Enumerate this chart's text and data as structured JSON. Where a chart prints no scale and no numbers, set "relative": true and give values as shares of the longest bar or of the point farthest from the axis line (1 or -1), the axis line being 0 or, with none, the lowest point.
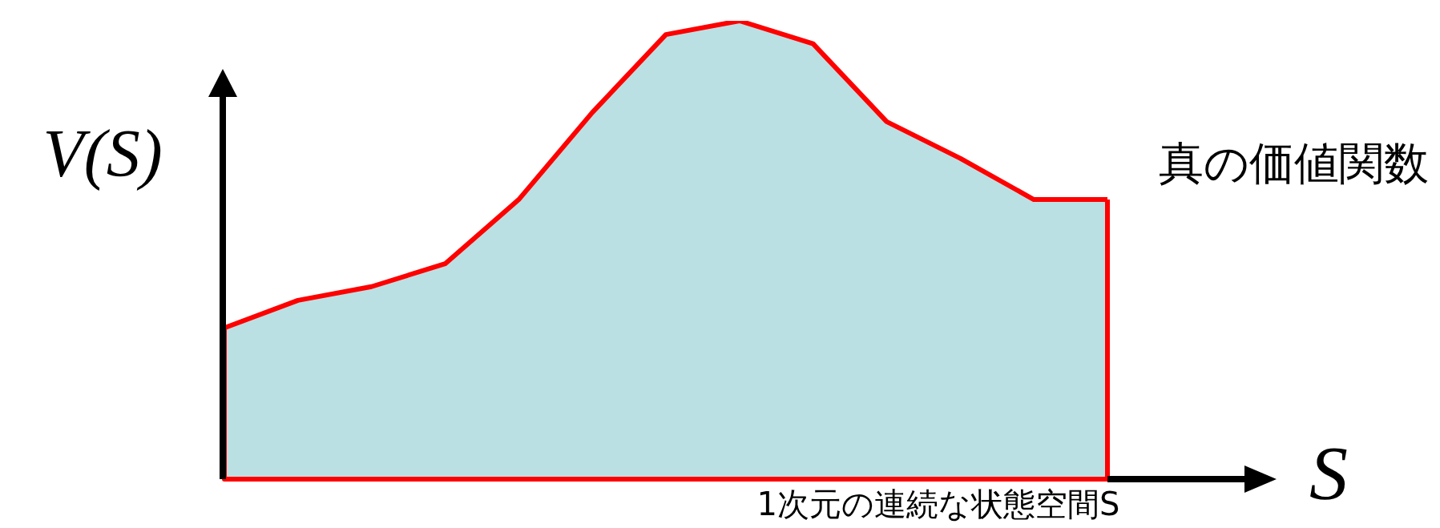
{
  "chart_data": {
    "type": "area",
    "relative": true,
    "ylabel": "V(S)",
    "xlabel": "S",
    "annotations": [
      "1次元の連続な状態空間S"
    ],
    "categories": [
      null,
      null,
      null,
      null,
      null,
      null,
      null,
      null,
      null,
      null,
      null,
      null,
      null
    ],
    "series": [
      {
        "name": "真の価値関数",
        "color": "#ff0000",
        "values": [
          0.33,
          0.39,
          0.42,
          0.47,
          0.61,
          0.8,
          0.97,
          1,
          0.95,
          0.78,
          0.7,
          0.61,
          0.61
        ]
      }
    ]
  }
}
